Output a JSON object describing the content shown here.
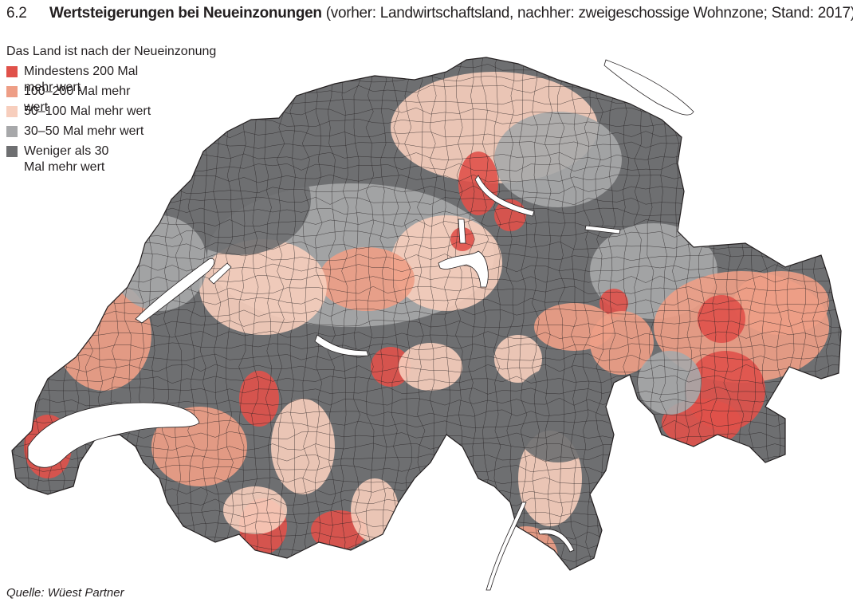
{
  "figure": {
    "number": "6.2",
    "title_bold": "Wertsteigerungen bei Neueinzonungen",
    "title_rest": " (vorher: Landwirtschaftsland, nachher: zweigeschossige Wohnzone; Stand: 2017)"
  },
  "legend": {
    "heading": "Das Land ist nach der Neueinzonung",
    "items": [
      {
        "label": "Mindestens 200 Mal mehr wert",
        "color": "#e0514a"
      },
      {
        "label": "100–200 Mal mehr wert",
        "color": "#ee9e86"
      },
      {
        "label": "50–100 Mal mehr wert",
        "color": "#f7cebd"
      },
      {
        "label": "30–50 Mal mehr wert",
        "color": "#a7a8aa"
      },
      {
        "label": "Weniger als 30 Mal mehr wert",
        "color": "#6e6f71"
      }
    ]
  },
  "source": "Quelle: Wüest Partner",
  "map": {
    "country": "Switzerland",
    "unit": "municipalities",
    "lake_color": "#ffffff",
    "border_color": "#231f20"
  }
}
